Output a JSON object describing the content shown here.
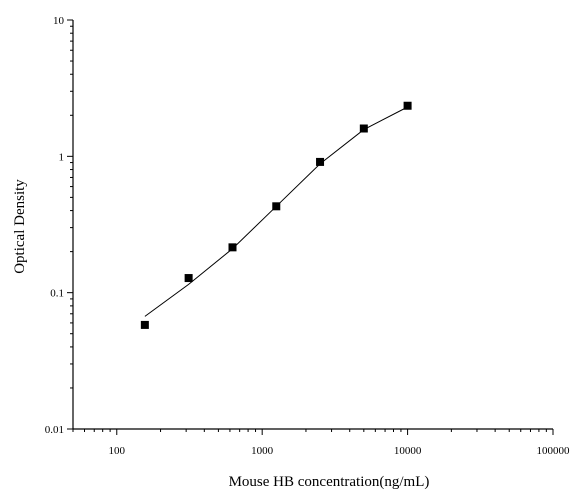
{
  "chart_data": {
    "type": "scatter",
    "title": "",
    "xlabel": "Mouse HB concentration(ng/mL)",
    "ylabel": "Optical Density",
    "xscale": "log",
    "yscale": "log",
    "xlim": [
      50,
      100000
    ],
    "ylim": [
      0.01,
      10
    ],
    "grid": false,
    "x_tick_labels": [
      "100",
      "1000",
      "10000",
      "100000"
    ],
    "x_tick_values": [
      100,
      1000,
      10000,
      100000
    ],
    "y_tick_labels": [
      "0.01",
      "0.1",
      "1",
      "10"
    ],
    "y_tick_values": [
      0.01,
      0.1,
      1,
      10
    ],
    "series": [
      {
        "marker": "square",
        "x": [
          156,
          312,
          625,
          1250,
          2500,
          5000,
          10000
        ],
        "y": [
          0.058,
          0.128,
          0.215,
          0.43,
          0.91,
          1.6,
          2.35
        ]
      }
    ],
    "fit_curve": {
      "style": "line",
      "x": [
        156,
        312,
        625,
        1250,
        2500,
        5000,
        10000
      ],
      "y": [
        0.067,
        0.115,
        0.21,
        0.43,
        0.88,
        1.57,
        2.3
      ]
    }
  }
}
